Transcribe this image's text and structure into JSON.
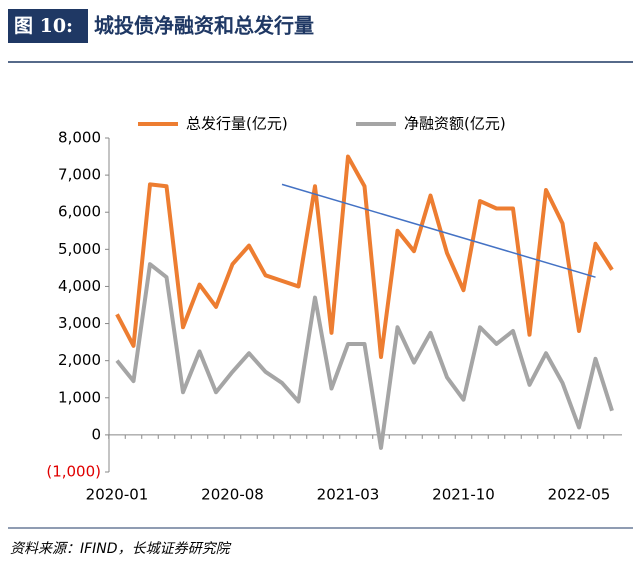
{
  "header": {
    "figure": "图 10:",
    "title": "城投债净融资和总发行量"
  },
  "chart_data": {
    "type": "line",
    "categories": [
      "2020-01",
      null,
      null,
      null,
      null,
      null,
      null,
      "2020-08",
      null,
      null,
      null,
      null,
      null,
      null,
      "2021-03",
      null,
      null,
      null,
      null,
      null,
      null,
      "2021-10",
      null,
      null,
      null,
      null,
      null,
      null,
      "2022-05",
      null,
      null
    ],
    "series": [
      {
        "name": "总发行量(亿元)",
        "color": "#ed7d31",
        "values": [
          3250,
          2400,
          6750,
          6700,
          2900,
          4050,
          3450,
          4600,
          5100,
          4300,
          4150,
          4000,
          6700,
          2750,
          7500,
          6700,
          2100,
          5500,
          4950,
          6450,
          4900,
          3900,
          6300,
          6100,
          6100,
          2700,
          6600,
          5700,
          2800,
          5150,
          4450
        ]
      },
      {
        "name": "净融资额(亿元)",
        "color": "#a5a5a5",
        "values": [
          2000,
          1450,
          4600,
          4250,
          1150,
          2250,
          1150,
          1700,
          2200,
          1700,
          1400,
          900,
          3700,
          1250,
          2450,
          2450,
          -350,
          2900,
          1950,
          2750,
          1550,
          950,
          2900,
          2450,
          2800,
          1350,
          2200,
          1400,
          200,
          2050,
          650
        ]
      }
    ],
    "trendline": {
      "color": "#4472c4",
      "x": [
        10,
        29
      ],
      "values": [
        6750,
        4250
      ]
    },
    "ylim": [
      -1000,
      8000
    ],
    "yticks": [
      {
        "value": -1000,
        "label": "(1,000)"
      },
      0,
      {
        "value": 1000,
        "label": "1,000"
      },
      {
        "value": 2000,
        "label": "2,000"
      },
      {
        "value": 3000,
        "label": "3,000"
      },
      {
        "value": 4000,
        "label": "4,000"
      },
      {
        "value": 5000,
        "label": "5,000"
      },
      {
        "value": 6000,
        "label": "6,000"
      },
      {
        "value": 7000,
        "label": "7,000"
      },
      {
        "value": 8000,
        "label": "8,000"
      }
    ],
    "negative_tick_color": "#e00000",
    "legend": "top"
  },
  "source": "资料来源：IFIND，长城证券研究院"
}
